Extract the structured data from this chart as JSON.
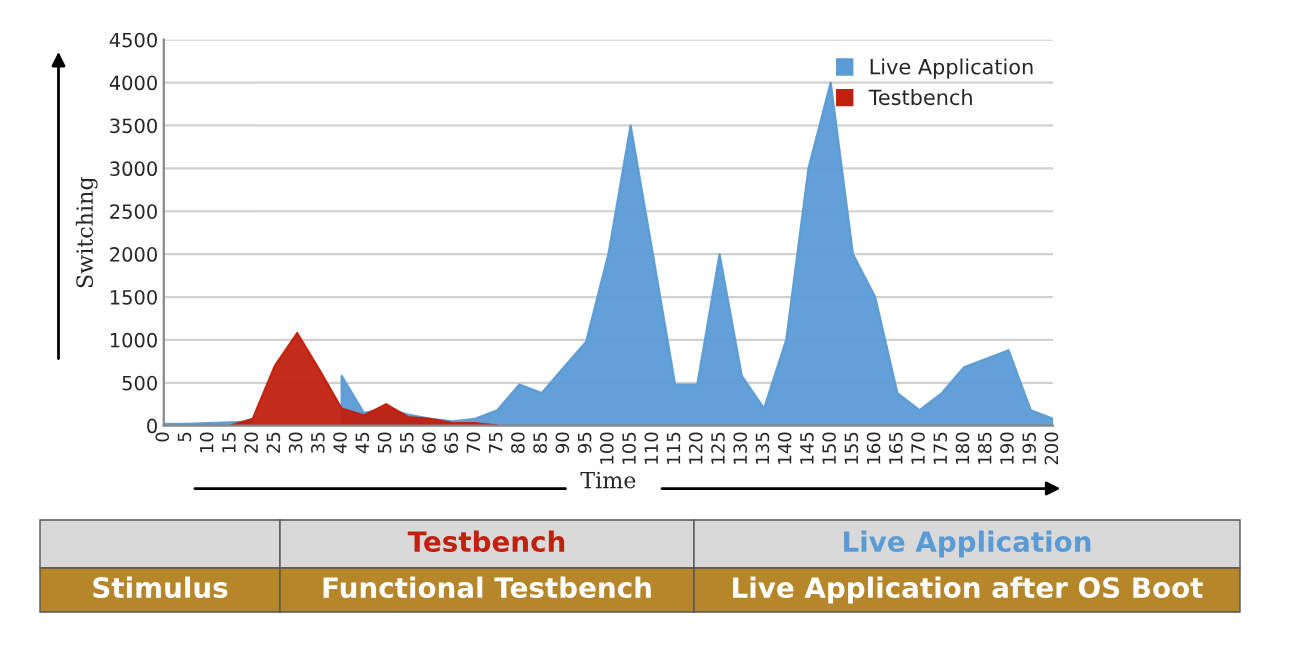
{
  "chart_data": {
    "type": "area",
    "xlabel": "Time",
    "ylabel": "Switching",
    "categories": [
      "0",
      "5",
      "10",
      "15",
      "20",
      "25",
      "30",
      "35",
      "40",
      "45",
      "50",
      "55",
      "60",
      "65",
      "70",
      "75",
      "80",
      "85",
      "90",
      "95",
      "100",
      "105",
      "110",
      "115",
      "120",
      "125",
      "130",
      "135",
      "140",
      "145",
      "150",
      "155",
      "160",
      "165",
      "170",
      "175",
      "180",
      "185",
      "190",
      "195",
      "200"
    ],
    "series": [
      {
        "name": "Live Application",
        "color": "#5b9bd5",
        "values": [
          20,
          20,
          30,
          40,
          50,
          null,
          null,
          null,
          580,
          150,
          200,
          130,
          80,
          50,
          80,
          180,
          480,
          380,
          680,
          980,
          2000,
          3500,
          2000,
          480,
          480,
          2000,
          580,
          200,
          1000,
          3000,
          4000,
          2000,
          1500,
          380,
          180,
          380,
          680,
          780,
          880,
          180,
          80
        ]
      },
      {
        "name": "Testbench",
        "color": "#c0200e",
        "values": [
          null,
          null,
          null,
          0,
          80,
          700,
          1080,
          650,
          200,
          120,
          250,
          100,
          80,
          30,
          30,
          0,
          null,
          null,
          null,
          null,
          null,
          null,
          null,
          null,
          null,
          null,
          null,
          null,
          null,
          null,
          null,
          null,
          null,
          null,
          null,
          null,
          null,
          null,
          null,
          null,
          null
        ]
      }
    ],
    "ylim": [
      0,
      4500
    ],
    "yticks": [
      0,
      500,
      1000,
      1500,
      2000,
      2500,
      3000,
      3500,
      4000,
      4500
    ],
    "grid": "y",
    "legend": "top right",
    "annotations": [
      "Testbench",
      "Live Application",
      "Stimulus",
      "Functional Testbench",
      "Live Application after OS Boot"
    ]
  }
}
